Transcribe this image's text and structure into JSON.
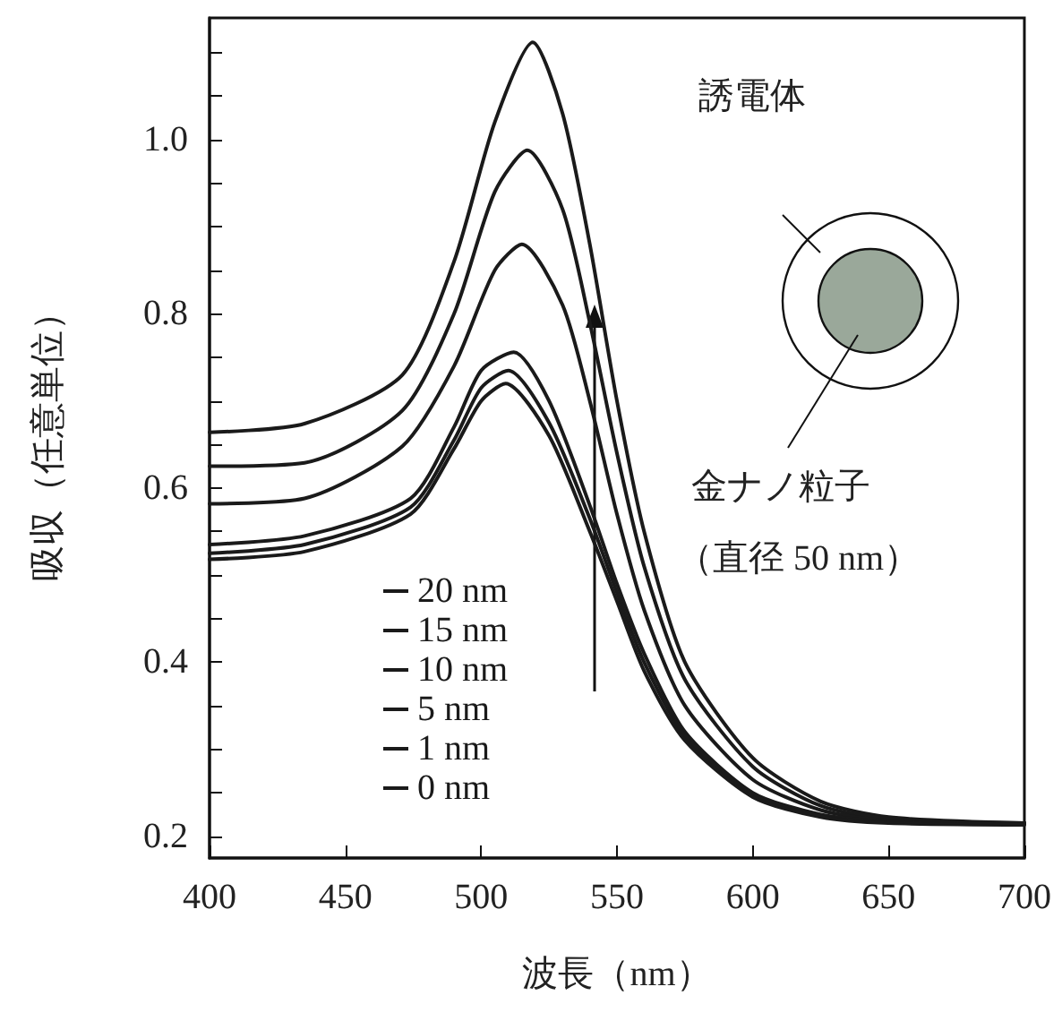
{
  "chart_data": {
    "type": "line",
    "xlabel": "波長（nm）",
    "ylabel": "吸収（任意単位）",
    "xlim": [
      400,
      700
    ],
    "xticks": [
      400,
      450,
      500,
      550,
      600,
      650,
      700
    ],
    "ylim": [
      0.175,
      1.14
    ],
    "yticks": [
      {
        "value": 0.2,
        "label": "0.2"
      },
      {
        "value": 0.25,
        "label": null
      },
      {
        "value": 0.3,
        "label": null
      },
      {
        "value": 0.35,
        "label": null
      },
      {
        "value": 0.4,
        "label": "0.4"
      },
      {
        "value": 0.45,
        "label": null
      },
      {
        "value": 0.5,
        "label": null
      },
      {
        "value": 0.55,
        "label": null
      },
      {
        "value": 0.6,
        "label": "0.6"
      },
      {
        "value": 0.65,
        "label": null
      },
      {
        "value": 0.7,
        "label": null
      },
      {
        "value": 0.75,
        "label": null
      },
      {
        "value": 0.8,
        "label": "0.8"
      },
      {
        "value": 0.85,
        "label": null
      },
      {
        "value": 0.9,
        "label": null
      },
      {
        "value": 0.95,
        "label": null
      },
      {
        "value": 1.0,
        "label": "1.0"
      },
      {
        "value": 1.05,
        "label": null
      },
      {
        "value": 1.1,
        "label": null
      }
    ],
    "grid": false,
    "legend": "bottom",
    "marker": "none",
    "line_style": "solid",
    "annotations": [
      "誘電体",
      "金ナノ粒子",
      "（直径 50 nm）"
    ],
    "series": [
      {
        "name": "20 nm",
        "color": "#1a1a1a",
        "x": [
          400,
          435,
          471,
          490,
          505,
          519,
          530,
          540,
          550,
          560,
          575,
          600,
          625,
          650,
          700
        ],
        "values": [
          0.664,
          0.674,
          0.73,
          0.86,
          1.02,
          1.112,
          1.03,
          0.88,
          0.7,
          0.55,
          0.4,
          0.29,
          0.24,
          0.222,
          0.215
        ]
      },
      {
        "name": "15 nm",
        "color": "#1a1a1a",
        "x": [
          400,
          435,
          471,
          490,
          505,
          517,
          530,
          540,
          550,
          560,
          575,
          600,
          625,
          650,
          700
        ],
        "values": [
          0.625,
          0.629,
          0.689,
          0.8,
          0.94,
          0.988,
          0.92,
          0.79,
          0.64,
          0.51,
          0.38,
          0.28,
          0.235,
          0.22,
          0.215
        ]
      },
      {
        "name": "10 nm",
        "color": "#1a1a1a",
        "x": [
          400,
          435,
          471,
          490,
          505,
          515,
          530,
          540,
          550,
          560,
          575,
          600,
          625,
          650,
          700
        ],
        "values": [
          0.582,
          0.588,
          0.648,
          0.74,
          0.85,
          0.88,
          0.81,
          0.7,
          0.57,
          0.46,
          0.35,
          0.265,
          0.23,
          0.218,
          0.215
        ]
      },
      {
        "name": "5 nm",
        "color": "#1a1a1a",
        "x": [
          400,
          435,
          474,
          490,
          500,
          512,
          525,
          540,
          550,
          560,
          575,
          600,
          625,
          650,
          700
        ],
        "values": [
          0.535,
          0.545,
          0.588,
          0.67,
          0.735,
          0.756,
          0.7,
          0.58,
          0.49,
          0.41,
          0.32,
          0.25,
          0.225,
          0.217,
          0.215
        ]
      },
      {
        "name": "1 nm",
        "color": "#1a1a1a",
        "x": [
          400,
          435,
          474,
          490,
          500,
          510,
          525,
          540,
          550,
          560,
          575,
          600,
          625,
          650,
          700
        ],
        "values": [
          0.525,
          0.535,
          0.578,
          0.655,
          0.715,
          0.735,
          0.675,
          0.565,
          0.48,
          0.4,
          0.315,
          0.248,
          0.223,
          0.216,
          0.214
        ]
      },
      {
        "name": "0 nm",
        "color": "#1a1a1a",
        "x": [
          400,
          435,
          474,
          490,
          500,
          509,
          525,
          540,
          550,
          560,
          575,
          600,
          625,
          650,
          700
        ],
        "values": [
          0.518,
          0.527,
          0.57,
          0.645,
          0.7,
          0.72,
          0.66,
          0.55,
          0.47,
          0.39,
          0.31,
          0.245,
          0.222,
          0.215,
          0.213
        ]
      }
    ]
  }
}
